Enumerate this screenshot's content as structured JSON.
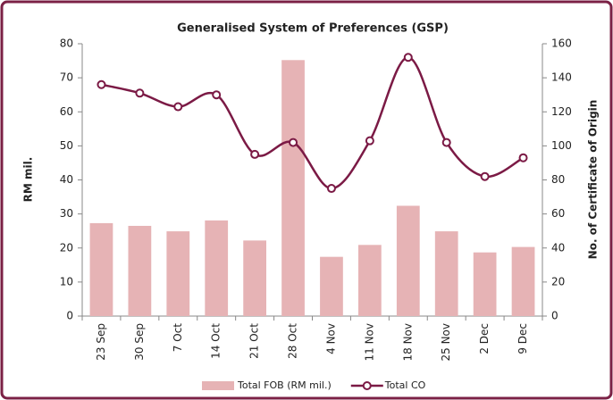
{
  "chart_data": {
    "type": "bar_line",
    "title": "Generalised System of Preferences (GSP)",
    "y_label": "RM mil.",
    "y2_label": "No. of Certificate of Origin",
    "categories": [
      "23 Sep",
      "30 Sep",
      "7 Oct",
      "14 Oct",
      "21 Oct",
      "28 Oct",
      "4 Nov",
      "11 Nov",
      "18 Nov",
      "25 Nov",
      "2 Dec",
      "9 Dec"
    ],
    "series": [
      {
        "name": "Total FOB (RM mil.)",
        "type": "bar",
        "color": "#e6b3b5",
        "values": [
          27.3,
          26.5,
          24.9,
          28.1,
          22.2,
          75.2,
          17.4,
          20.9,
          32.4,
          24.9,
          18.7,
          20.3
        ]
      },
      {
        "name": "Total CO",
        "type": "line",
        "axis": "y2",
        "color": "#7b1a45",
        "values": [
          136,
          131,
          123,
          130,
          95,
          102,
          75,
          103,
          152,
          102,
          82,
          93
        ]
      }
    ],
    "ylim": [
      0,
      80
    ],
    "yticks": [
      0,
      10,
      20,
      30,
      40,
      50,
      60,
      70,
      80
    ],
    "y2lim": [
      0,
      160
    ],
    "y2ticks": [
      0,
      20,
      40,
      60,
      80,
      100,
      120,
      140,
      160
    ],
    "legend": "bottom"
  }
}
